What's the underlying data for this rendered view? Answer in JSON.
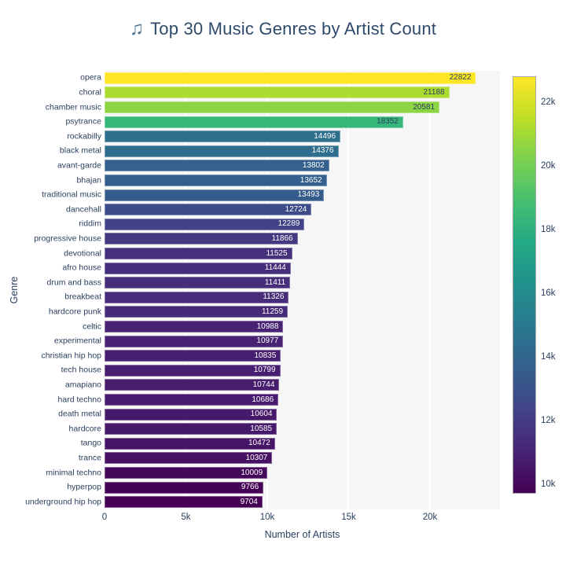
{
  "title": {
    "icon": "♫",
    "text": "Top 30 Music Genres by Artist Count"
  },
  "chart_data": {
    "type": "bar",
    "orientation": "horizontal",
    "title": "Top 30 Music Genres by Artist Count",
    "xlabel": "Number of Artists",
    "ylabel": "Genre",
    "xlim": [
      0,
      24300
    ],
    "grid": true,
    "x_ticks": [
      {
        "value": 0,
        "label": "0"
      },
      {
        "value": 5000,
        "label": "5k"
      },
      {
        "value": 10000,
        "label": "10k"
      },
      {
        "value": 15000,
        "label": "15k"
      },
      {
        "value": 20000,
        "label": "20k"
      }
    ],
    "categories": [
      "opera",
      "choral",
      "chamber music",
      "psytrance",
      "rockabilly",
      "black metal",
      "avant-garde",
      "bhajan",
      "traditional music",
      "dancehall",
      "riddim",
      "progressive house",
      "devotional",
      "afro house",
      "drum and bass",
      "breakbeat",
      "hardcore punk",
      "celtic",
      "experimental",
      "christian hip hop",
      "tech house",
      "amapiano",
      "hard techno",
      "death metal",
      "hardcore",
      "tango",
      "trance",
      "minimal techno",
      "hyperpop",
      "underground hip hop"
    ],
    "values": [
      22822,
      21188,
      20581,
      18352,
      14496,
      14376,
      13802,
      13652,
      13493,
      12724,
      12289,
      11866,
      11525,
      11444,
      11411,
      11326,
      11259,
      10988,
      10977,
      10835,
      10799,
      10744,
      10686,
      10604,
      10585,
      10472,
      10307,
      10009,
      9766,
      9704
    ],
    "colorbar": {
      "colorscale": "viridis",
      "min": 9704,
      "max": 22822,
      "legend_position": "right",
      "ticks": [
        {
          "value": 22000,
          "label": "22k"
        },
        {
          "value": 20000,
          "label": "20k"
        },
        {
          "value": 18000,
          "label": "18k"
        },
        {
          "value": 16000,
          "label": "16k"
        },
        {
          "value": 14000,
          "label": "14k"
        },
        {
          "value": 12000,
          "label": "12k"
        },
        {
          "value": 10000,
          "label": "10k"
        }
      ]
    }
  },
  "colors": {
    "text": "#2a3f5f",
    "title_text": "#2e4a6a",
    "note_icon": "#4d7390",
    "plot_bg": "#f6f6f7",
    "gridline": "#ffffff",
    "bar_label_dark": "#2a3f5f",
    "bar_label_light": "#ffffff"
  }
}
